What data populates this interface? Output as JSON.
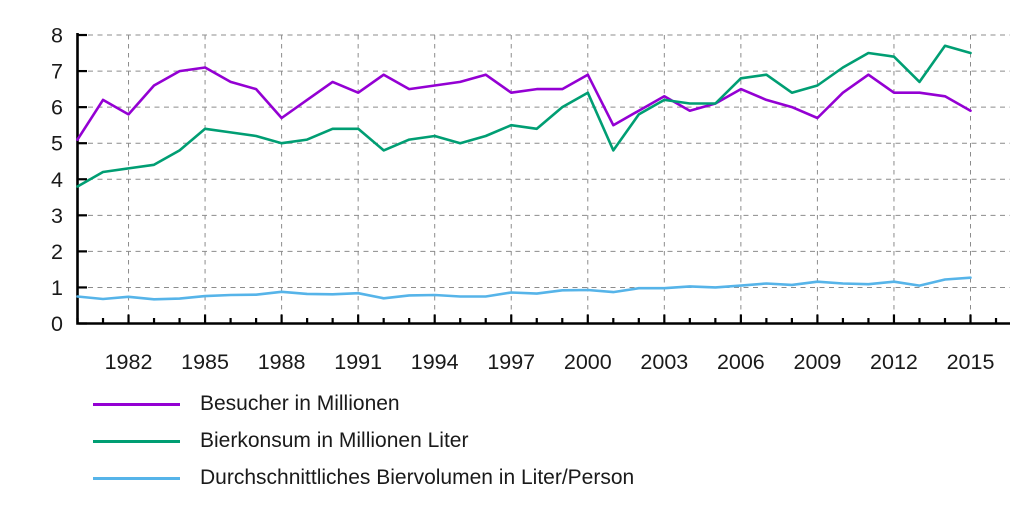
{
  "chart_data": {
    "type": "line",
    "title": "",
    "xlabel": "",
    "ylabel": "",
    "x": [
      1980,
      1981,
      1982,
      1983,
      1984,
      1985,
      1986,
      1987,
      1988,
      1989,
      1990,
      1991,
      1992,
      1993,
      1994,
      1995,
      1996,
      1997,
      1998,
      1999,
      2000,
      2001,
      2002,
      2003,
      2004,
      2005,
      2006,
      2007,
      2008,
      2009,
      2010,
      2011,
      2012,
      2013,
      2014,
      2015
    ],
    "series": [
      {
        "id": "besucher",
        "name": "Besucher in Millionen",
        "color": "#9400d3",
        "values": [
          5.1,
          6.2,
          5.8,
          6.6,
          7.0,
          7.1,
          6.7,
          6.5,
          5.7,
          6.2,
          6.7,
          6.4,
          6.9,
          6.5,
          6.6,
          6.7,
          6.9,
          6.4,
          6.5,
          6.5,
          6.9,
          5.5,
          5.9,
          6.3,
          5.9,
          6.1,
          6.5,
          6.2,
          6.0,
          5.7,
          6.4,
          6.9,
          6.4,
          6.4,
          6.3,
          5.9
        ]
      },
      {
        "id": "bierkonsum",
        "name": "Bierkonsum in Millionen Liter",
        "color": "#009e73",
        "values": [
          3.8,
          4.2,
          4.3,
          4.4,
          4.8,
          5.4,
          5.3,
          5.2,
          5.0,
          5.1,
          5.4,
          5.4,
          4.8,
          5.1,
          5.2,
          5.0,
          5.2,
          5.5,
          5.4,
          6.0,
          6.4,
          4.8,
          5.8,
          6.2,
          6.1,
          6.1,
          6.8,
          6.9,
          6.4,
          6.6,
          7.1,
          7.5,
          7.4,
          6.7,
          7.7,
          7.5
        ]
      },
      {
        "id": "biervolumen-pro-person",
        "name": "Durchschnittliches Biervolumen in Liter/Person",
        "color": "#56b4e9",
        "values": [
          0.75,
          0.68,
          0.74,
          0.67,
          0.69,
          0.76,
          0.79,
          0.8,
          0.88,
          0.82,
          0.81,
          0.84,
          0.7,
          0.78,
          0.79,
          0.75,
          0.75,
          0.86,
          0.83,
          0.92,
          0.93,
          0.87,
          0.98,
          0.98,
          1.03,
          1.0,
          1.05,
          1.11,
          1.07,
          1.16,
          1.11,
          1.09,
          1.16,
          1.05,
          1.22,
          1.27
        ]
      }
    ],
    "xlim": [
      1980,
      2016.6
    ],
    "ylim": [
      0,
      8
    ],
    "ytick_labels": [
      "0",
      "1",
      "2",
      "3",
      "4",
      "5",
      "6",
      "7",
      "8"
    ],
    "xtick_labels": [
      "1982",
      "1985",
      "1988",
      "1991",
      "1994",
      "1997",
      "2000",
      "2003",
      "2006",
      "2009",
      "2012",
      "2015"
    ],
    "grid": "dashed, horizontal at each integer and vertical at labeled years",
    "grid_color": "#8c8c8c",
    "axis_color": "#000000",
    "tick_label_color": "#1a1a1a",
    "legend_position": "below-left"
  }
}
